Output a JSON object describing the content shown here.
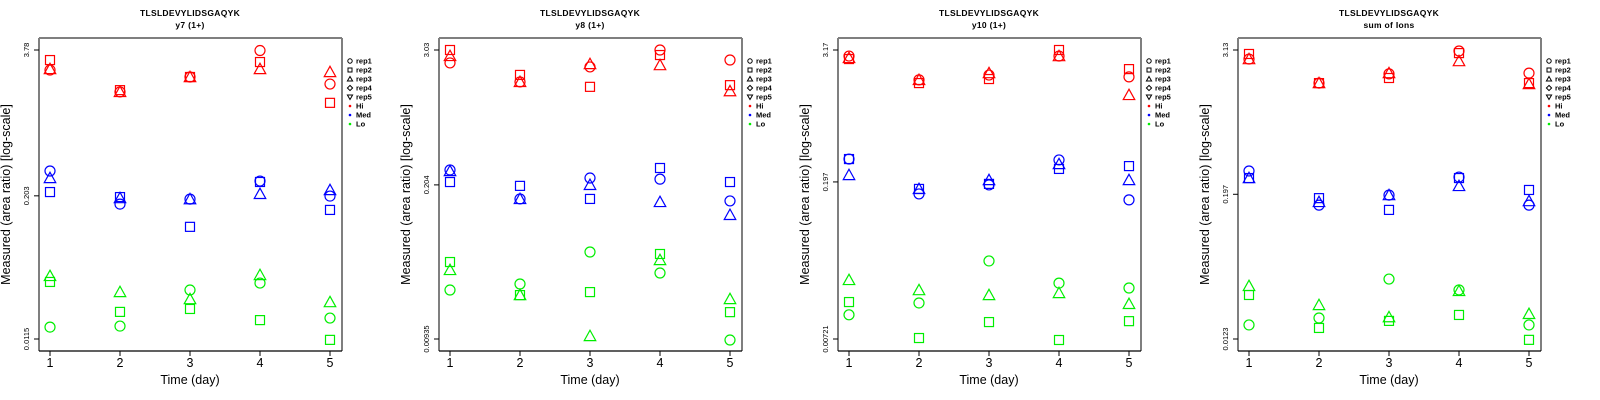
{
  "chart_data": [
    {
      "type": "scatter",
      "title": "TLSLDEVYLIDSGAQYK",
      "subtitle": "y7 (1+)",
      "xlabel": "Time (day)",
      "ylabel": "Measured (area ratio) [log-scale]",
      "yscale": "log",
      "x_ticks": [
        "1",
        "2",
        "3",
        "4",
        "5"
      ],
      "y_ticks": [
        {
          "value": 3.78,
          "label": "3.78"
        },
        {
          "value": 0.203,
          "label": "0.203"
        },
        {
          "value": 0.0115,
          "label": "0.0115"
        }
      ],
      "ylim": [
        0.0115,
        3.78
      ],
      "xlim": [
        1,
        5
      ],
      "grid": false,
      "legend_position": "right",
      "series": [
        {
          "level": "Hi",
          "replicate": "rep1",
          "x": [
            1,
            2,
            3,
            4,
            5
          ],
          "y": [
            2.53,
            1.63,
            2.2,
            3.74,
            1.91
          ]
        },
        {
          "level": "Hi",
          "replicate": "rep2",
          "x": [
            1,
            2,
            3,
            4,
            5
          ],
          "y": [
            3.09,
            1.69,
            2.2,
            2.97,
            1.31
          ]
        },
        {
          "level": "Hi",
          "replicate": "rep3",
          "x": [
            1,
            2,
            3,
            4,
            5
          ],
          "y": [
            2.58,
            1.63,
            2.2,
            2.58,
            2.43
          ]
        },
        {
          "level": "Med",
          "replicate": "rep1",
          "x": [
            1,
            2,
            3,
            4,
            5
          ],
          "y": [
            0.334,
            0.172,
            0.19,
            0.273,
            0.202
          ]
        },
        {
          "level": "Med",
          "replicate": "rep2",
          "x": [
            1,
            2,
            3,
            4,
            5
          ],
          "y": [
            0.219,
            0.198,
            0.109,
            0.268,
            0.153
          ]
        },
        {
          "level": "Med",
          "replicate": "rep3",
          "x": [
            1,
            2,
            3,
            4,
            5
          ],
          "y": [
            0.29,
            0.194,
            0.19,
            0.211,
            0.228
          ]
        },
        {
          "level": "Lo",
          "replicate": "rep1",
          "x": [
            1,
            2,
            3,
            4,
            5
          ],
          "y": [
            0.0146,
            0.0149,
            0.0307,
            0.0353,
            0.0175
          ]
        },
        {
          "level": "Lo",
          "replicate": "rep2",
          "x": [
            1,
            2,
            3,
            4,
            5
          ],
          "y": [
            0.0361,
            0.0198,
            0.021,
            0.0168,
            0.0113
          ]
        },
        {
          "level": "Lo",
          "replicate": "rep3",
          "x": [
            1,
            2,
            3,
            4,
            5
          ],
          "y": [
            0.0407,
            0.0295,
            0.0256,
            0.0415,
            0.0241
          ]
        }
      ]
    },
    {
      "type": "scatter",
      "title": "TLSLDEVYLIDSGAQYK",
      "subtitle": "y8 (1+)",
      "xlabel": "Time (day)",
      "ylabel": "Measured (area ratio) [log-scale]",
      "yscale": "log",
      "x_ticks": [
        "1",
        "2",
        "3",
        "4",
        "5"
      ],
      "y_ticks": [
        {
          "value": 3.03,
          "label": "3.03"
        },
        {
          "value": 0.204,
          "label": "0.204"
        },
        {
          "value": 0.00935,
          "label": "0.00935"
        }
      ],
      "ylim": [
        0.00935,
        3.03
      ],
      "xlim": [
        1,
        5
      ],
      "grid": false,
      "legend_position": "right",
      "series": [
        {
          "level": "Hi",
          "replicate": "rep1",
          "x": [
            1,
            2,
            3,
            4,
            5
          ],
          "y": [
            2.34,
            1.6,
            2.16,
            3.03,
            2.48
          ]
        },
        {
          "level": "Hi",
          "replicate": "rep2",
          "x": [
            1,
            2,
            3,
            4,
            5
          ],
          "y": [
            3.03,
            1.84,
            1.45,
            2.74,
            1.5
          ]
        },
        {
          "level": "Hi",
          "replicate": "rep3",
          "x": [
            1,
            2,
            3,
            4,
            5
          ],
          "y": [
            2.69,
            1.6,
            2.29,
            2.24,
            1.33
          ]
        },
        {
          "level": "Med",
          "replicate": "rep1",
          "x": [
            1,
            2,
            3,
            4,
            5
          ],
          "y": [
            0.275,
            0.154,
            0.234,
            0.229,
            0.148
          ]
        },
        {
          "level": "Med",
          "replicate": "rep2",
          "x": [
            1,
            2,
            3,
            4,
            5
          ],
          "y": [
            0.216,
            0.2,
            0.154,
            0.286,
            0.216
          ]
        },
        {
          "level": "Med",
          "replicate": "rep3",
          "x": [
            1,
            2,
            3,
            4,
            5
          ],
          "y": [
            0.269,
            0.154,
            0.204,
            0.145,
            0.112
          ]
        },
        {
          "level": "Lo",
          "replicate": "rep1",
          "x": [
            1,
            2,
            3,
            4,
            5
          ],
          "y": [
            0.0249,
            0.0281,
            0.0533,
            0.035,
            0.00916
          ]
        },
        {
          "level": "Lo",
          "replicate": "rep2",
          "x": [
            1,
            2,
            3,
            4,
            5
          ],
          "y": [
            0.0436,
            0.0225,
            0.0239,
            0.0512,
            0.016
          ]
        },
        {
          "level": "Lo",
          "replicate": "rep3",
          "x": [
            1,
            2,
            3,
            4,
            5
          ],
          "y": [
            0.0372,
            0.0225,
            0.00993,
            0.0454,
            0.0208
          ]
        }
      ]
    },
    {
      "type": "scatter",
      "title": "TLSLDEVYLIDSGAQYK",
      "subtitle": "y10 (1+)",
      "xlabel": "Time (day)",
      "ylabel": "Measured (area ratio) [log-scale]",
      "yscale": "log",
      "x_ticks": [
        "1",
        "2",
        "3",
        "4",
        "5"
      ],
      "y_ticks": [
        {
          "value": 3.17,
          "label": "3.17"
        },
        {
          "value": 0.197,
          "label": "0.197"
        },
        {
          "value": 0.00721,
          "label": "0.00721"
        }
      ],
      "ylim": [
        0.00721,
        3.17
      ],
      "xlim": [
        1,
        5
      ],
      "grid": false,
      "legend_position": "right",
      "series": [
        {
          "level": "Hi",
          "replicate": "rep1",
          "x": [
            1,
            2,
            3,
            4,
            5
          ],
          "y": [
            2.79,
            1.69,
            1.87,
            2.79,
            1.8
          ]
        },
        {
          "level": "Hi",
          "replicate": "rep2",
          "x": [
            1,
            2,
            3,
            4,
            5
          ],
          "y": [
            2.62,
            1.58,
            1.72,
            3.17,
            2.12
          ]
        },
        {
          "level": "Hi",
          "replicate": "rep3",
          "x": [
            1,
            2,
            3,
            4,
            5
          ],
          "y": [
            2.68,
            1.69,
            1.95,
            2.79,
            1.23
          ]
        },
        {
          "level": "Med",
          "replicate": "rep1",
          "x": [
            1,
            2,
            3,
            4,
            5
          ],
          "y": [
            0.319,
            0.153,
            0.185,
            0.313,
            0.135
          ]
        },
        {
          "level": "Med",
          "replicate": "rep2",
          "x": [
            1,
            2,
            3,
            4,
            5
          ],
          "y": [
            0.319,
            0.17,
            0.189,
            0.259,
            0.275
          ]
        },
        {
          "level": "Med",
          "replicate": "rep3",
          "x": [
            1,
            2,
            3,
            4,
            5
          ],
          "y": [
            0.228,
            0.17,
            0.205,
            0.287,
            0.205
          ]
        },
        {
          "level": "Lo",
          "replicate": "rep1",
          "x": [
            1,
            2,
            3,
            4,
            5
          ],
          "y": [
            0.012,
            0.0154,
            0.0373,
            0.0234,
            0.0211
          ]
        },
        {
          "level": "Lo",
          "replicate": "rep2",
          "x": [
            1,
            2,
            3,
            4,
            5
          ],
          "y": [
            0.0157,
            0.00736,
            0.0103,
            0.00706,
            0.0105
          ]
        },
        {
          "level": "Lo",
          "replicate": "rep3",
          "x": [
            1,
            2,
            3,
            4,
            5
          ],
          "y": [
            0.025,
            0.0202,
            0.0182,
            0.019,
            0.0151
          ]
        }
      ]
    },
    {
      "type": "scatter",
      "title": "TLSLDEVYLIDSGAQYK",
      "subtitle": "sum of Ions",
      "xlabel": "Time (day)",
      "ylabel": "Measured (area ratio) [log-scale]",
      "yscale": "log",
      "x_ticks": [
        "1",
        "2",
        "3",
        "4",
        "5"
      ],
      "y_ticks": [
        {
          "value": 3.13,
          "label": "3.13"
        },
        {
          "value": 0.197,
          "label": "0.197"
        },
        {
          "value": 0.0123,
          "label": "0.0123"
        }
      ],
      "ylim": [
        0.0123,
        3.13
      ],
      "xlim": [
        1,
        5
      ],
      "grid": false,
      "legend_position": "right",
      "series": [
        {
          "level": "Hi",
          "replicate": "rep1",
          "x": [
            1,
            2,
            3,
            4,
            5
          ],
          "y": [
            2.63,
            1.66,
            1.98,
            3.07,
            2.01
          ]
        },
        {
          "level": "Hi",
          "replicate": "rep2",
          "x": [
            1,
            2,
            3,
            4,
            5
          ],
          "y": [
            2.9,
            1.66,
            1.83,
            2.95,
            1.66
          ]
        },
        {
          "level": "Hi",
          "replicate": "rep3",
          "x": [
            1,
            2,
            3,
            4,
            5
          ],
          "y": [
            2.63,
            1.66,
            2.01,
            2.53,
            1.63
          ]
        },
        {
          "level": "Med",
          "replicate": "rep1",
          "x": [
            1,
            2,
            3,
            4,
            5
          ],
          "y": [
            0.308,
            0.16,
            0.194,
            0.274,
            0.16
          ]
        },
        {
          "level": "Med",
          "replicate": "rep2",
          "x": [
            1,
            2,
            3,
            4,
            5
          ],
          "y": [
            0.269,
            0.183,
            0.146,
            0.269,
            0.214
          ]
        },
        {
          "level": "Med",
          "replicate": "rep3",
          "x": [
            1,
            2,
            3,
            4,
            5
          ],
          "y": [
            0.269,
            0.17,
            0.194,
            0.231,
            0.173
          ]
        },
        {
          "level": "Lo",
          "replicate": "rep1",
          "x": [
            1,
            2,
            3,
            4,
            5
          ],
          "y": [
            0.0161,
            0.0184,
            0.0388,
            0.0315,
            0.0161
          ]
        },
        {
          "level": "Lo",
          "replicate": "rep2",
          "x": [
            1,
            2,
            3,
            4,
            5
          ],
          "y": [
            0.0286,
            0.0152,
            0.0174,
            0.0195,
            0.0121
          ]
        },
        {
          "level": "Lo",
          "replicate": "rep3",
          "x": [
            1,
            2,
            3,
            4,
            5
          ],
          "y": [
            0.034,
            0.0236,
            0.0187,
            0.0309,
            0.0199
          ]
        }
      ]
    }
  ],
  "legend": {
    "shapes": [
      {
        "label": "rep1",
        "symbol": "circle"
      },
      {
        "label": "rep2",
        "symbol": "square"
      },
      {
        "label": "rep3",
        "symbol": "triangle-up"
      },
      {
        "label": "rep4",
        "symbol": "diamond"
      },
      {
        "label": "rep5",
        "symbol": "triangle-down"
      }
    ],
    "colors": [
      {
        "label": "Hi",
        "color": "#ff0000"
      },
      {
        "label": "Med",
        "color": "#0000ff"
      },
      {
        "label": "Lo",
        "color": "#00ee00"
      }
    ]
  },
  "level_colors": {
    "Hi": "#ff0000",
    "Med": "#0000ff",
    "Lo": "#00ee00"
  }
}
